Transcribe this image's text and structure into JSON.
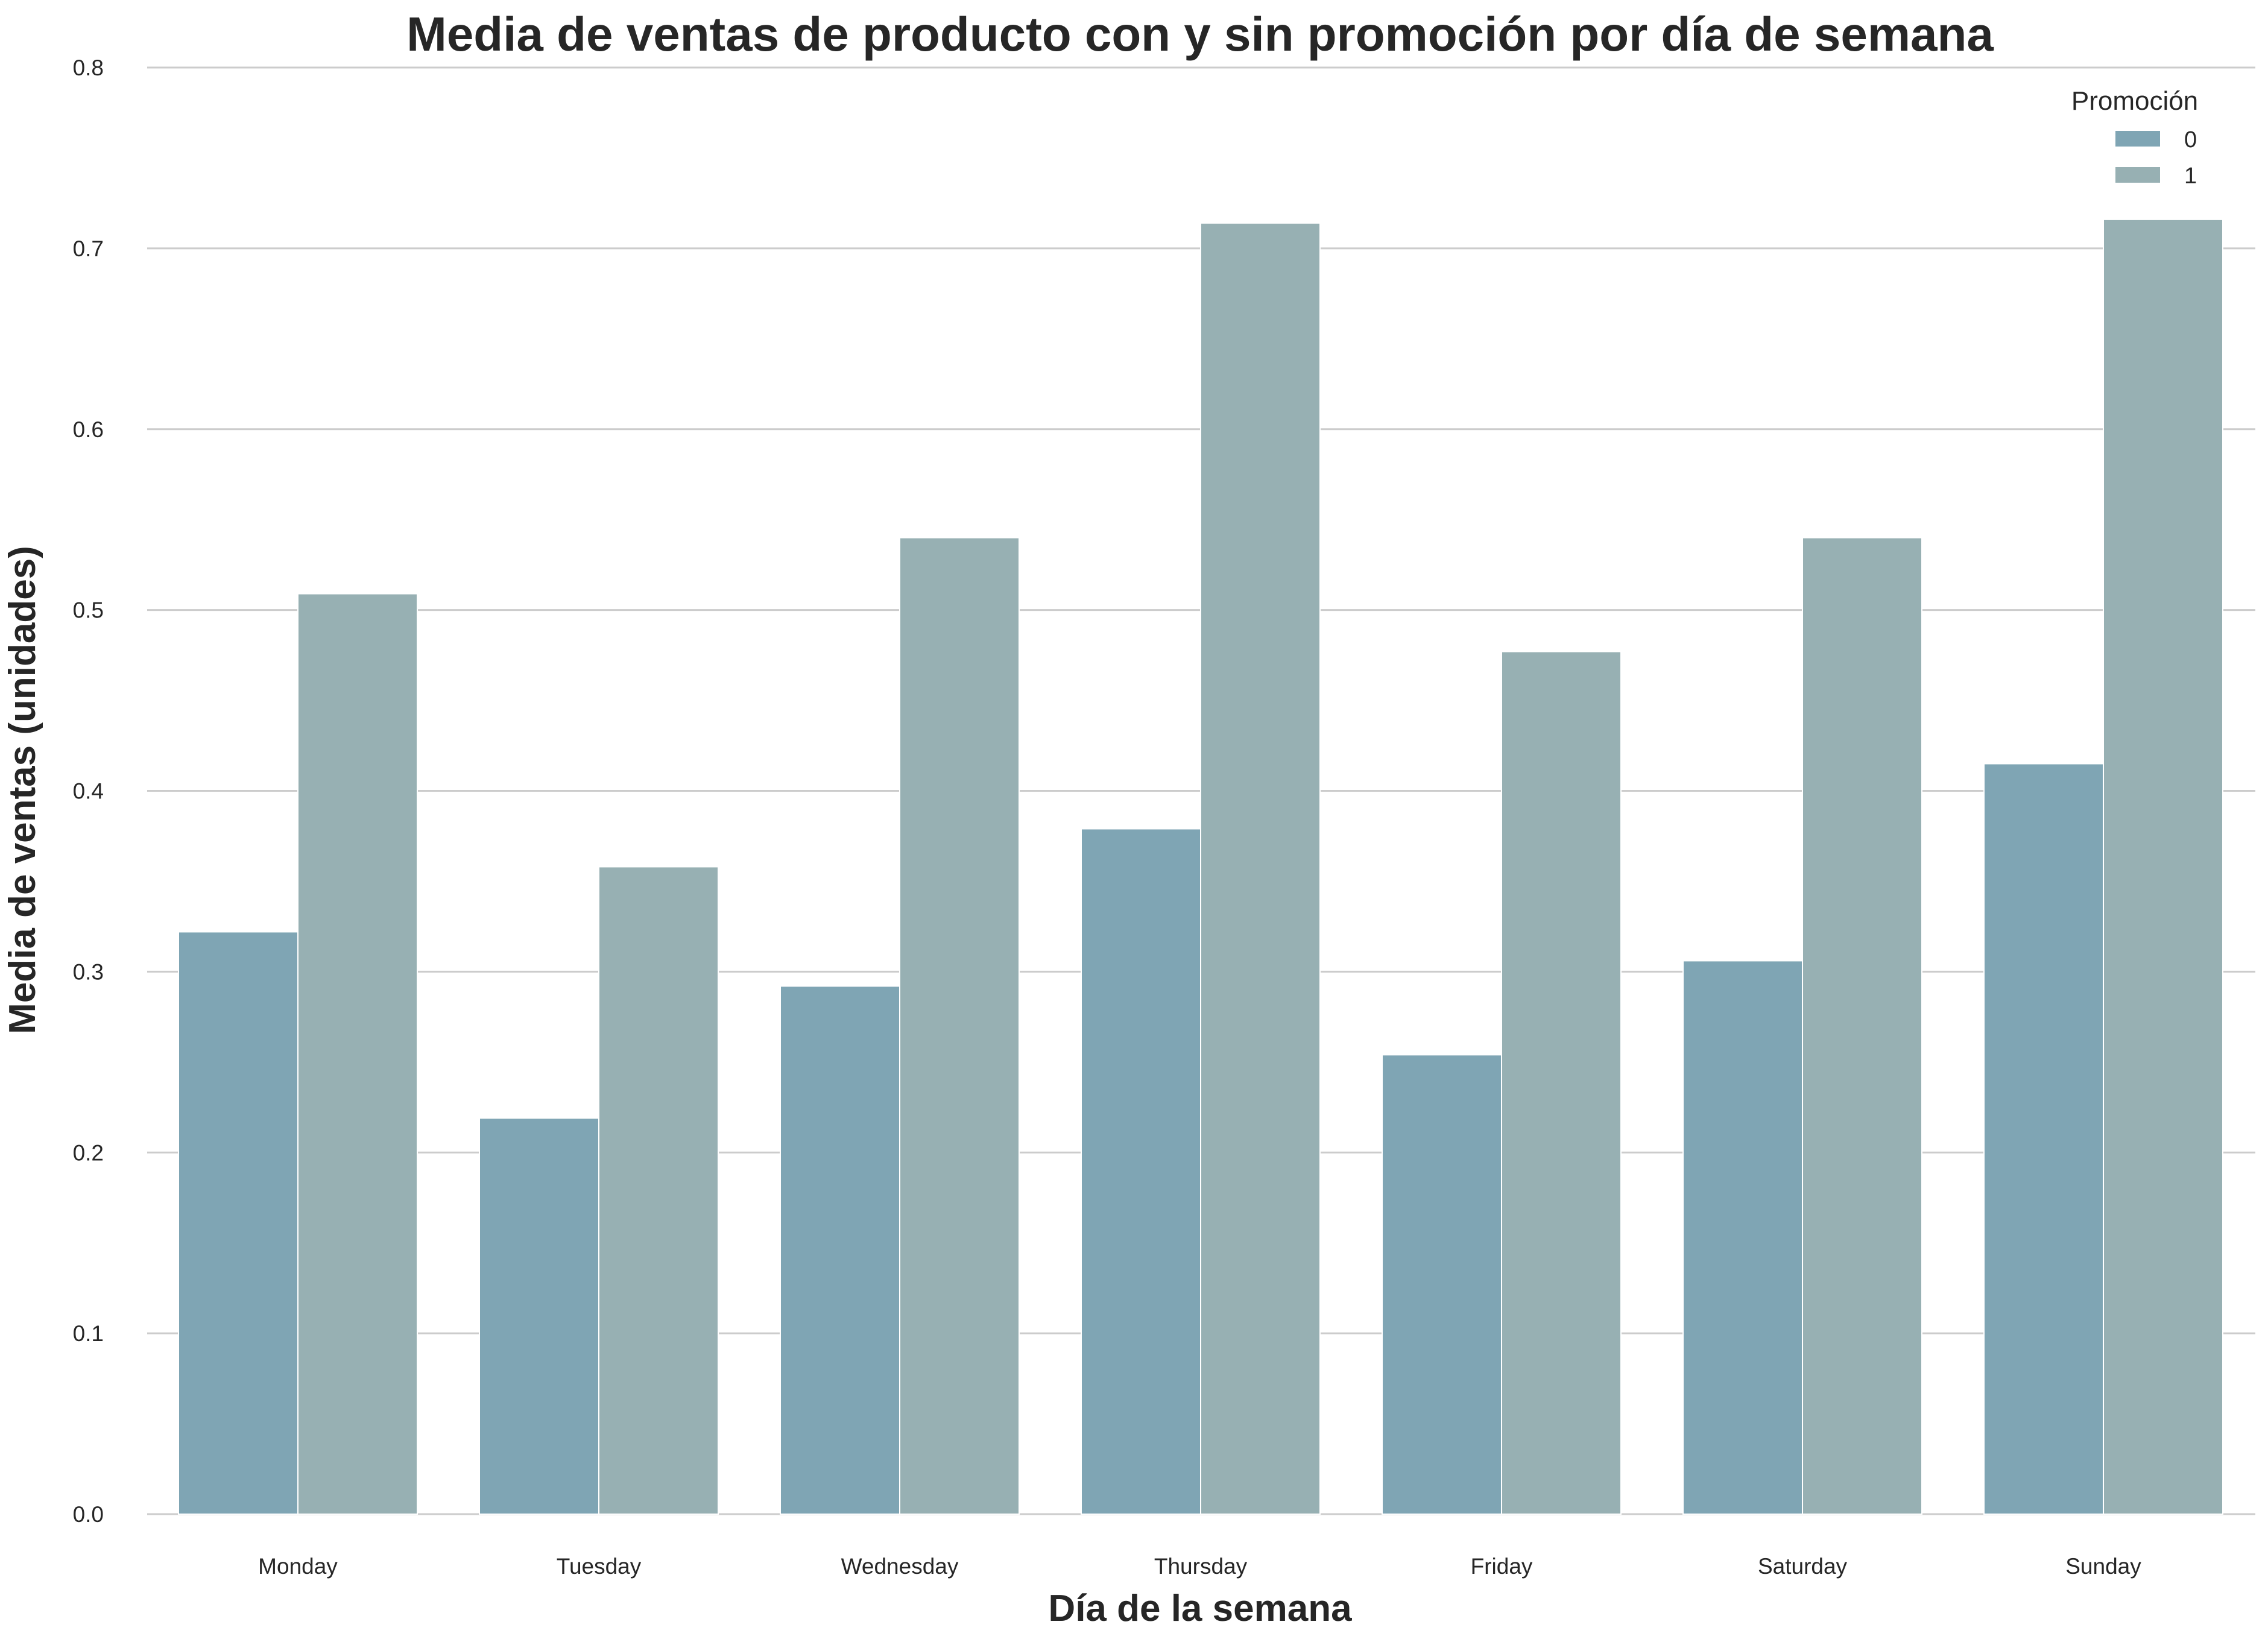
{
  "chart_data": {
    "type": "bar",
    "title": "Media de ventas de producto con y sin promoción por día de semana",
    "xlabel": "Día de la semana",
    "ylabel": "Media de ventas (unidades)",
    "categories": [
      "Monday",
      "Tuesday",
      "Wednesday",
      "Thursday",
      "Friday",
      "Saturday",
      "Sunday"
    ],
    "series": [
      {
        "name": "0",
        "color": "#7fa5b4",
        "values": [
          0.322,
          0.219,
          0.292,
          0.379,
          0.254,
          0.306,
          0.415
        ]
      },
      {
        "name": "1",
        "color": "#97b0b3",
        "values": [
          0.509,
          0.358,
          0.54,
          0.714,
          0.477,
          0.54,
          0.716
        ]
      }
    ],
    "ylim": [
      0,
      0.8
    ],
    "yticks": [
      "0.0",
      "0.1",
      "0.2",
      "0.3",
      "0.4",
      "0.5",
      "0.6",
      "0.7",
      "0.8"
    ],
    "grid": true,
    "legend": {
      "title": "Promoción",
      "placement": "top-right"
    }
  }
}
